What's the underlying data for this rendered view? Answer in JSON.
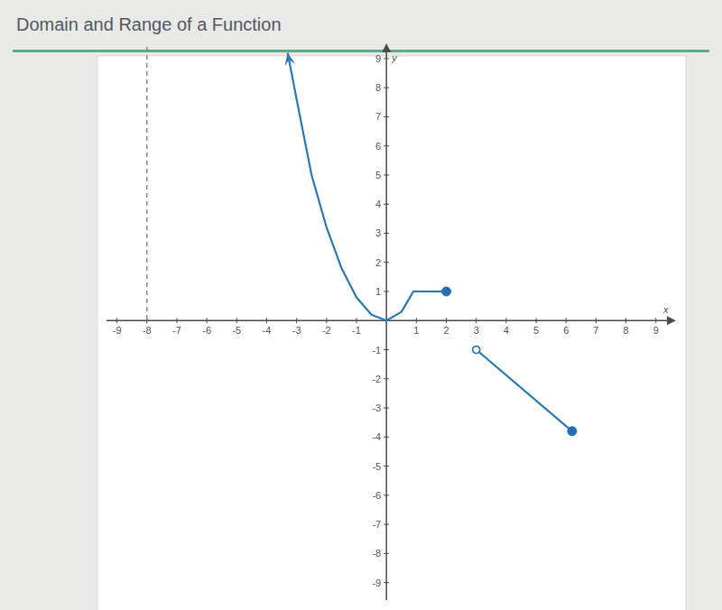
{
  "chart_data": {
    "type": "line",
    "title": "Domain and Range of a Function",
    "x_label": "x",
    "y_label": "y",
    "xlim": [
      -9.35,
      9.55
    ],
    "ylim": [
      -9.6,
      9.4
    ],
    "xticks": [
      -9,
      -8,
      -7,
      -6,
      -5,
      -4,
      -3,
      -2,
      -1,
      1,
      2,
      3,
      4,
      5,
      6,
      7,
      8,
      9
    ],
    "yticks": [
      -9,
      -8,
      -7,
      -6,
      -5,
      -4,
      -3,
      -2,
      -1,
      1,
      2,
      3,
      4,
      5,
      6,
      7,
      8,
      9
    ],
    "grid": false,
    "vertical_lines": [
      {
        "x": -8,
        "line_style": "dashed",
        "color": "#8a8a8a"
      }
    ],
    "series": [
      {
        "type": "line",
        "marker": "arrow",
        "color": "#2b78b2",
        "x": [
          -3.3,
          -3,
          -2.5,
          -2,
          -1.5,
          -1,
          -0.5,
          0,
          0.5,
          0.9,
          2
        ],
        "values": [
          9.2,
          7.6,
          5,
          3.2,
          1.8,
          0.8,
          0.2,
          0,
          0.3,
          1,
          1
        ]
      },
      {
        "type": "line",
        "color": "#2b78b2",
        "x": [
          3,
          6.2
        ],
        "values": [
          -1,
          -3.8
        ]
      },
      {
        "type": "scatter",
        "marker": "filled",
        "color": "#1f6fb2",
        "x": [
          2,
          6.2
        ],
        "values": [
          1,
          -3.8
        ]
      },
      {
        "type": "scatter",
        "marker": "open",
        "color": "#2b78b2",
        "x": [
          3
        ],
        "values": [
          -1
        ]
      }
    ]
  }
}
